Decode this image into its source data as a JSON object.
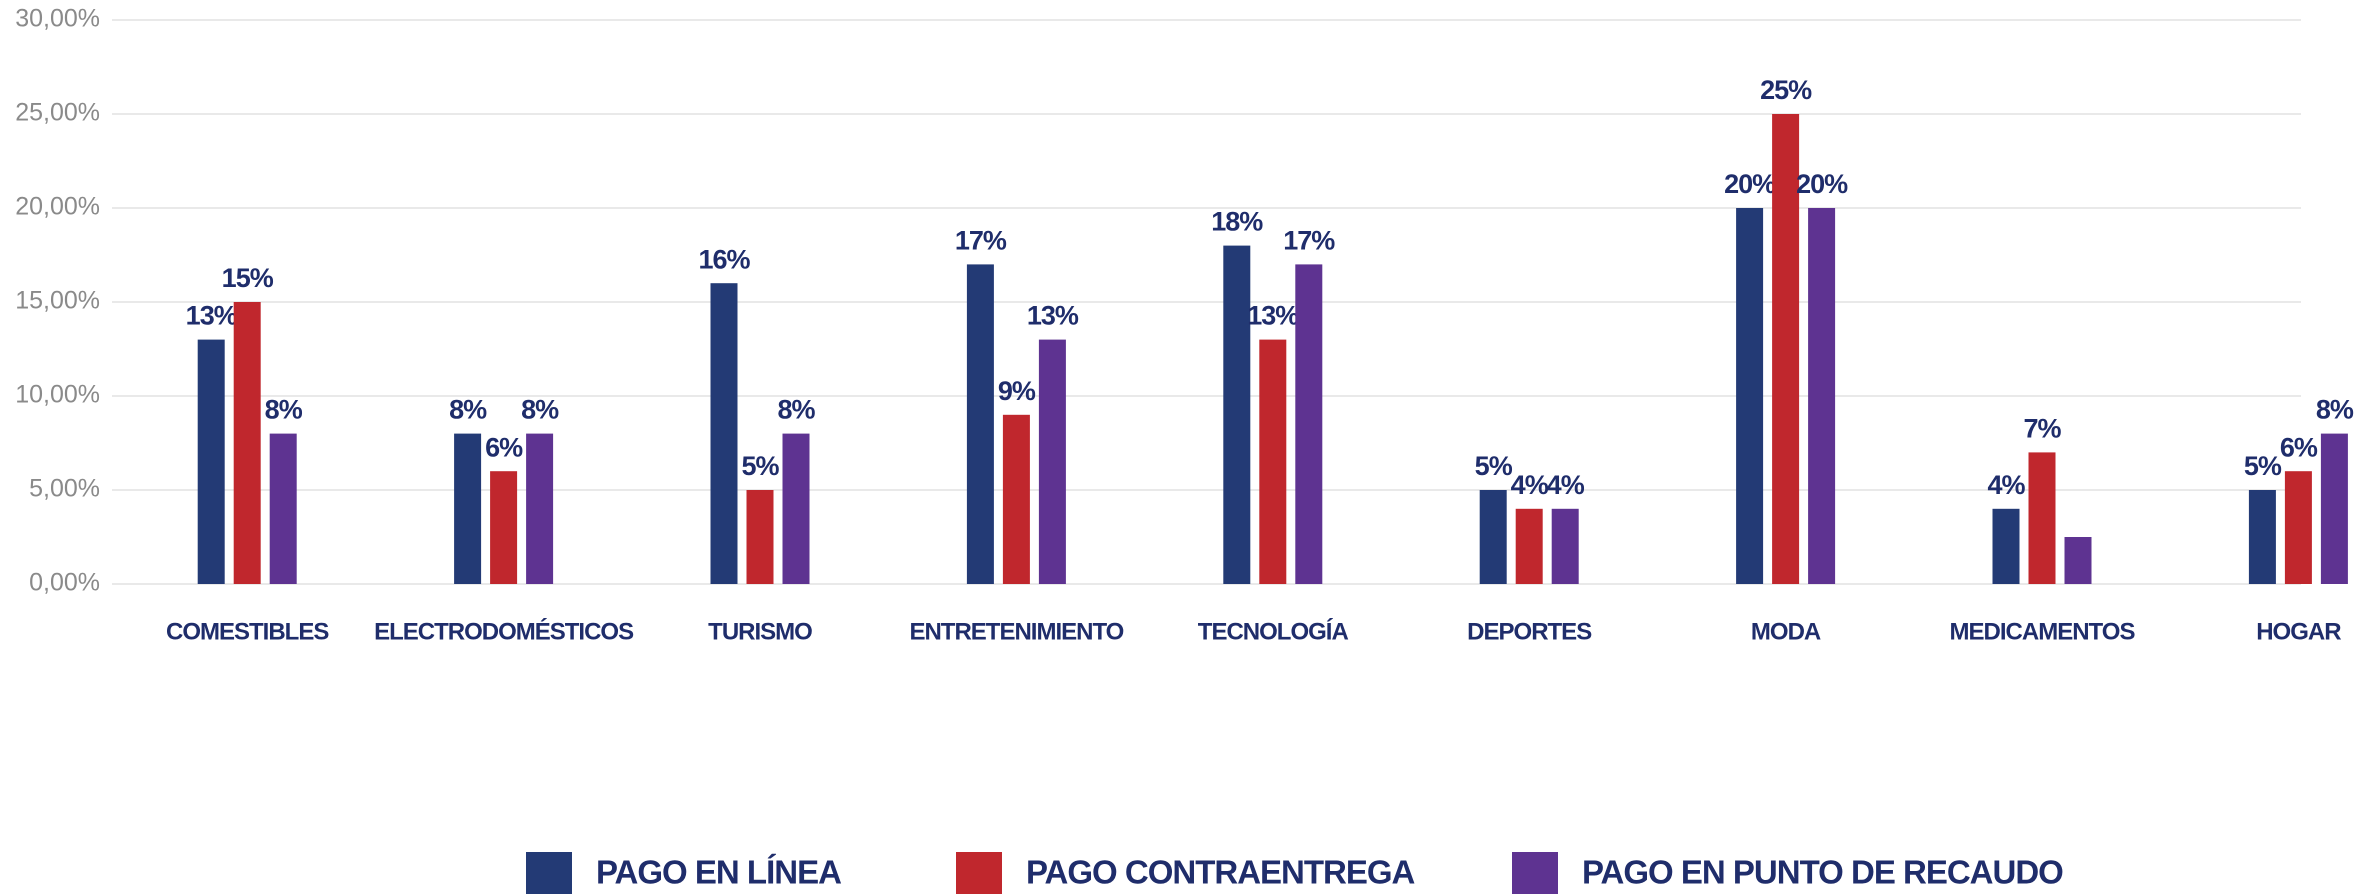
{
  "chart_data": {
    "type": "bar",
    "categories": [
      "COMESTIBLES",
      "ELECTRODOMÉSTICOS",
      "TURISMO",
      "ENTRETENIMIENTO",
      "TECNOLOGÍA",
      "DEPORTES",
      "MODA",
      "MEDICAMENTOS",
      "HOGAR"
    ],
    "series": [
      {
        "name": "PAGO EN LÍNEA",
        "color": "#233a75",
        "values": [
          13,
          8,
          16,
          17,
          18,
          5,
          20,
          4,
          5
        ],
        "value_labels": [
          "13%",
          "8%",
          "16%",
          "17%",
          "18%",
          "5%",
          "20%",
          "4%",
          "5%"
        ]
      },
      {
        "name": "PAGO CONTRAENTREGA",
        "color": "#c0272d",
        "values": [
          15,
          6,
          5,
          9,
          13,
          4,
          25,
          7,
          6
        ],
        "value_labels": [
          "15%",
          "6%",
          "5%",
          "9%",
          "13%",
          "4%",
          "25%",
          "7%",
          "6%"
        ]
      },
      {
        "name": "PAGO EN PUNTO DE RECAUDO",
        "color": "#5e3391",
        "values": [
          8,
          8,
          8,
          13,
          17,
          4,
          20,
          2.5,
          8
        ],
        "value_labels": [
          "8%",
          "8%",
          "8%",
          "13%",
          "17%",
          "4%",
          "20%",
          null,
          "8%"
        ]
      }
    ],
    "ylim": [
      0,
      30
    ],
    "yticks": [
      {
        "value": 0,
        "label": "0,00%"
      },
      {
        "value": 5,
        "label": "5,00%"
      },
      {
        "value": 10,
        "label": "10,00%"
      },
      {
        "value": 15,
        "label": "15,00%"
      },
      {
        "value": 20,
        "label": "20,00%"
      },
      {
        "value": 25,
        "label": "25,00%"
      },
      {
        "value": 30,
        "label": "30,00%"
      }
    ],
    "grid": true,
    "legend": "bottom"
  }
}
